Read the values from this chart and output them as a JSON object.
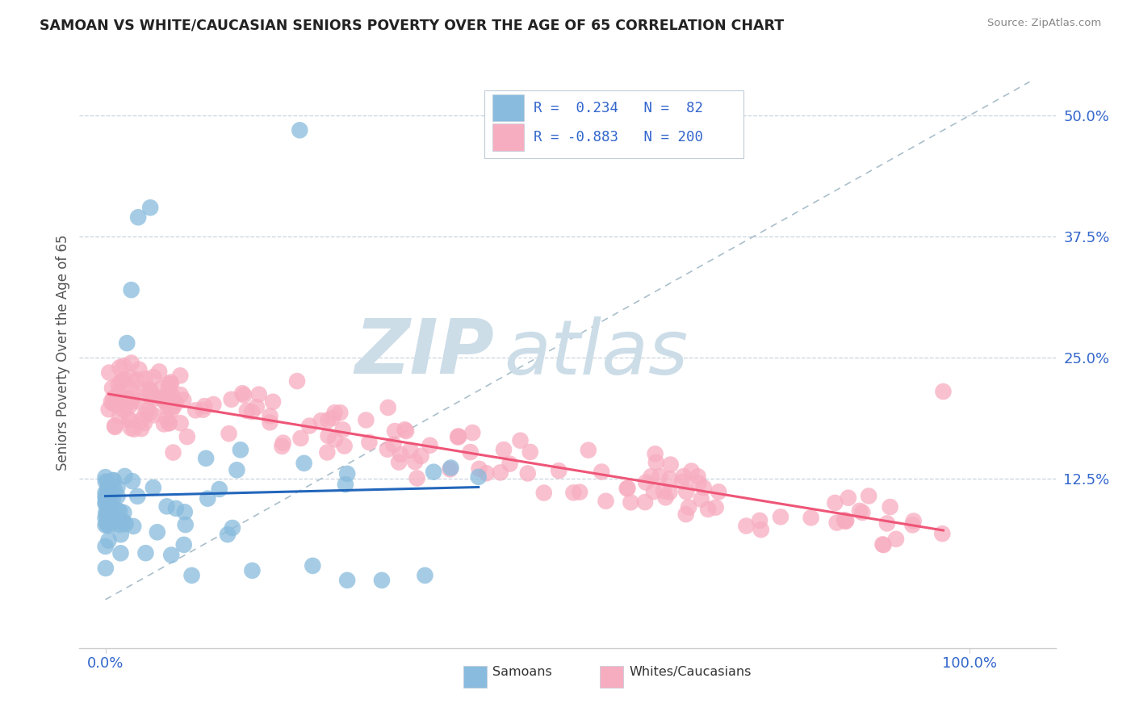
{
  "title": "SAMOAN VS WHITE/CAUCASIAN SENIORS POVERTY OVER THE AGE OF 65 CORRELATION CHART",
  "source": "Source: ZipAtlas.com",
  "ylabel": "Seniors Poverty Over the Age of 65",
  "samoan_R": 0.234,
  "samoan_N": 82,
  "white_R": -0.883,
  "white_N": 200,
  "samoan_color": "#88bbdd",
  "white_color": "#f7adc0",
  "samoan_line_color": "#2266bb",
  "white_line_color": "#ee5577",
  "dashed_line_color": "#aabfcc",
  "watermark_zip": "ZIP",
  "watermark_atlas": "atlas",
  "watermark_color": "#ccdde8",
  "title_color": "#222222",
  "axis_label_color": "#555555",
  "tick_label_color": "#3366cc",
  "grid_color": "#c8d4dc",
  "background_color": "#ffffff",
  "legend_border_color": "#c0ccd8",
  "source_color": "#888888",
  "bottom_legend_text_color": "#333333",
  "ytick_vals": [
    0.125,
    0.25,
    0.375,
    0.5
  ],
  "ytick_labels": [
    "12.5%",
    "25.0%",
    "37.5%",
    "50.0%"
  ],
  "xtick_vals": [
    0.0,
    1.0
  ],
  "xtick_labels": [
    "0.0%",
    "100.0%"
  ],
  "xlim": [
    -0.03,
    1.1
  ],
  "ylim": [
    -0.05,
    0.56
  ]
}
